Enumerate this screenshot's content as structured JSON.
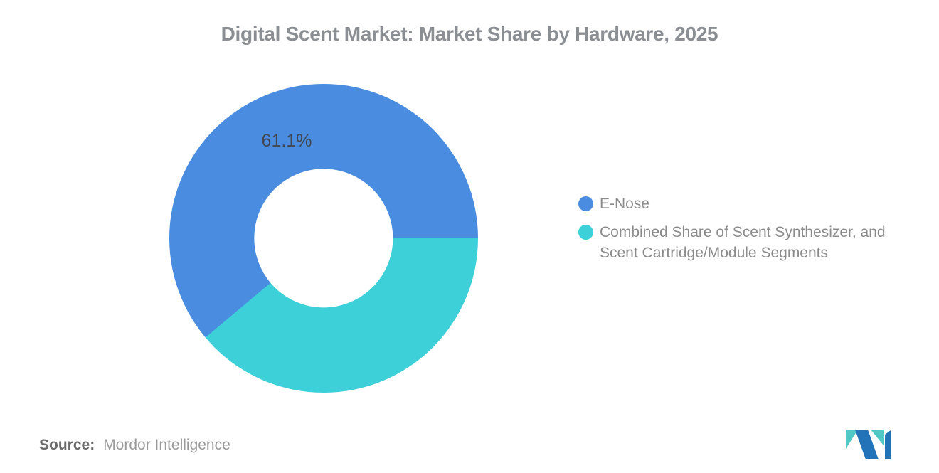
{
  "title": "Digital Scent Market: Market Share by Hardware, 2025",
  "source": {
    "label": "Source:",
    "value": "Mordor Intelligence"
  },
  "brand": {
    "logo_blue": "#2373b9",
    "logo_teal": "#4fc8c6"
  },
  "chart_data": {
    "type": "pie",
    "subtype": "donut",
    "title": "Digital Scent Market: Market Share by Hardware, 2025",
    "segments": [
      {
        "label": "E-Nose",
        "value": 61.1,
        "color": "#4a8de0",
        "data_label": "61.1%"
      },
      {
        "label": "Combined Share of Scent Synthesizer, and Scent Cartridge/Module Segments",
        "value": 38.9,
        "color": "#3dd0d8"
      }
    ],
    "start_angle_deg": 230,
    "donut_hole_ratio": 0.45,
    "legend_position": "right",
    "legend": [
      {
        "color": "#4a8de0",
        "lines": [
          "E-Nose"
        ]
      },
      {
        "color": "#3dd0d8",
        "lines": [
          "Combined Share of Scent Synthesizer, and",
          "Scent Cartridge/Module Segments"
        ]
      }
    ]
  }
}
